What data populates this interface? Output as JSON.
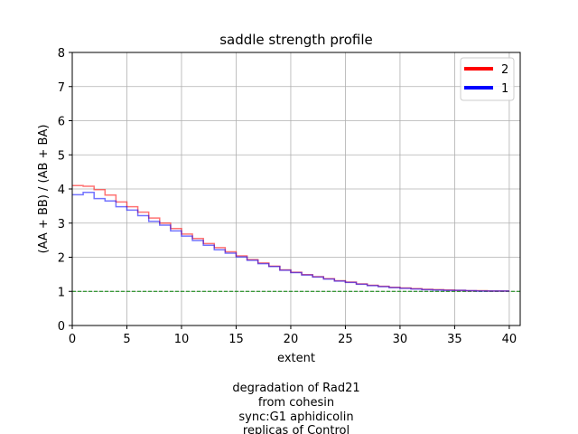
{
  "chart_data": {
    "type": "line",
    "title": "saddle strength profile",
    "xlabel": "extent",
    "ylabel": "(AA + BB) / (AB + BA)",
    "xlim": [
      0,
      41
    ],
    "ylim": [
      0,
      8
    ],
    "xticks": [
      0,
      5,
      10,
      15,
      20,
      25,
      30,
      35,
      40
    ],
    "yticks": [
      0,
      1,
      2,
      3,
      4,
      5,
      6,
      7,
      8
    ],
    "grid": true,
    "step": true,
    "legend_position": "top-right",
    "reference_line": {
      "y": 1,
      "style": "dashed",
      "color": "#008000"
    },
    "series": [
      {
        "name": "2",
        "color": "#ff0000",
        "x": [
          0,
          1,
          2,
          3,
          4,
          5,
          6,
          7,
          8,
          9,
          10,
          11,
          12,
          13,
          14,
          15,
          16,
          17,
          18,
          19,
          20,
          21,
          22,
          23,
          24,
          25,
          26,
          27,
          28,
          29,
          30,
          31,
          32,
          33,
          34,
          35,
          36,
          37,
          38,
          39
        ],
        "values": [
          4.1,
          4.08,
          3.98,
          3.82,
          3.62,
          3.48,
          3.32,
          3.15,
          3.0,
          2.84,
          2.68,
          2.55,
          2.4,
          2.28,
          2.16,
          2.04,
          1.93,
          1.83,
          1.74,
          1.63,
          1.56,
          1.49,
          1.43,
          1.37,
          1.31,
          1.27,
          1.22,
          1.18,
          1.15,
          1.12,
          1.1,
          1.08,
          1.06,
          1.05,
          1.04,
          1.03,
          1.02,
          1.02,
          1.01,
          1.01
        ]
      },
      {
        "name": "1",
        "color": "#0000ff",
        "x": [
          0,
          1,
          2,
          3,
          4,
          5,
          6,
          7,
          8,
          9,
          10,
          11,
          12,
          13,
          14,
          15,
          16,
          17,
          18,
          19,
          20,
          21,
          22,
          23,
          24,
          25,
          26,
          27,
          28,
          29,
          30,
          31,
          32,
          33,
          34,
          35,
          36,
          37,
          38,
          39
        ],
        "values": [
          3.83,
          3.9,
          3.72,
          3.65,
          3.48,
          3.38,
          3.22,
          3.05,
          2.94,
          2.77,
          2.62,
          2.49,
          2.35,
          2.22,
          2.12,
          2.01,
          1.91,
          1.81,
          1.73,
          1.62,
          1.55,
          1.48,
          1.42,
          1.36,
          1.3,
          1.26,
          1.21,
          1.17,
          1.14,
          1.11,
          1.09,
          1.07,
          1.05,
          1.04,
          1.03,
          1.03,
          1.02,
          1.01,
          1.01,
          1.01
        ]
      }
    ],
    "caption": [
      "degradation of Rad21",
      "from cohesin",
      "sync:G1 aphidicolin",
      "replicas of Control"
    ]
  }
}
